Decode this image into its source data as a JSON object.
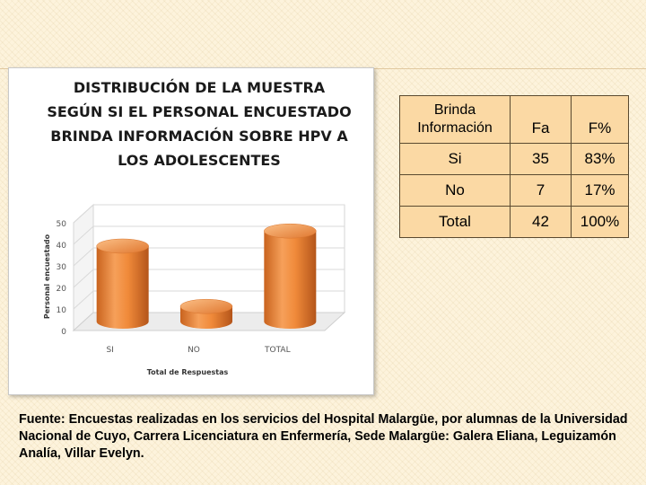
{
  "chart_data": {
    "type": "bar",
    "title_lines": [
      "DISTRIBUCIÓN DE LA MUESTRA",
      "SEGÚN SI EL PERSONAL ENCUESTADO",
      "BRINDA INFORMACIÓN SOBRE HPV A",
      "LOS ADOLESCENTES"
    ],
    "categories": [
      "SI",
      "NO",
      "TOTAL"
    ],
    "values": [
      35,
      7,
      42
    ],
    "xlabel": "Total de Respuestas",
    "ylabel": "Personal encuestado",
    "ylim": [
      0,
      50
    ],
    "yticks": [
      "0",
      "10",
      "20",
      "30",
      "40",
      "50"
    ],
    "grid": true,
    "bar_color": "#f08a3a"
  },
  "table": {
    "headers": [
      "Brinda Información",
      "Fa",
      "F%"
    ],
    "rows": [
      [
        "Si",
        "35",
        "83%"
      ],
      [
        "No",
        "7",
        "17%"
      ],
      [
        "Total",
        "42",
        "100%"
      ]
    ]
  },
  "source_text": "Fuente: Encuestas realizadas en los servicios del Hospital Malargüe, por alumnas de la Universidad Nacional de Cuyo, Carrera  Licenciatura  en Enfermería, Sede Malargüe: Galera Eliana, Leguizamón Analía, Villar Evelyn."
}
